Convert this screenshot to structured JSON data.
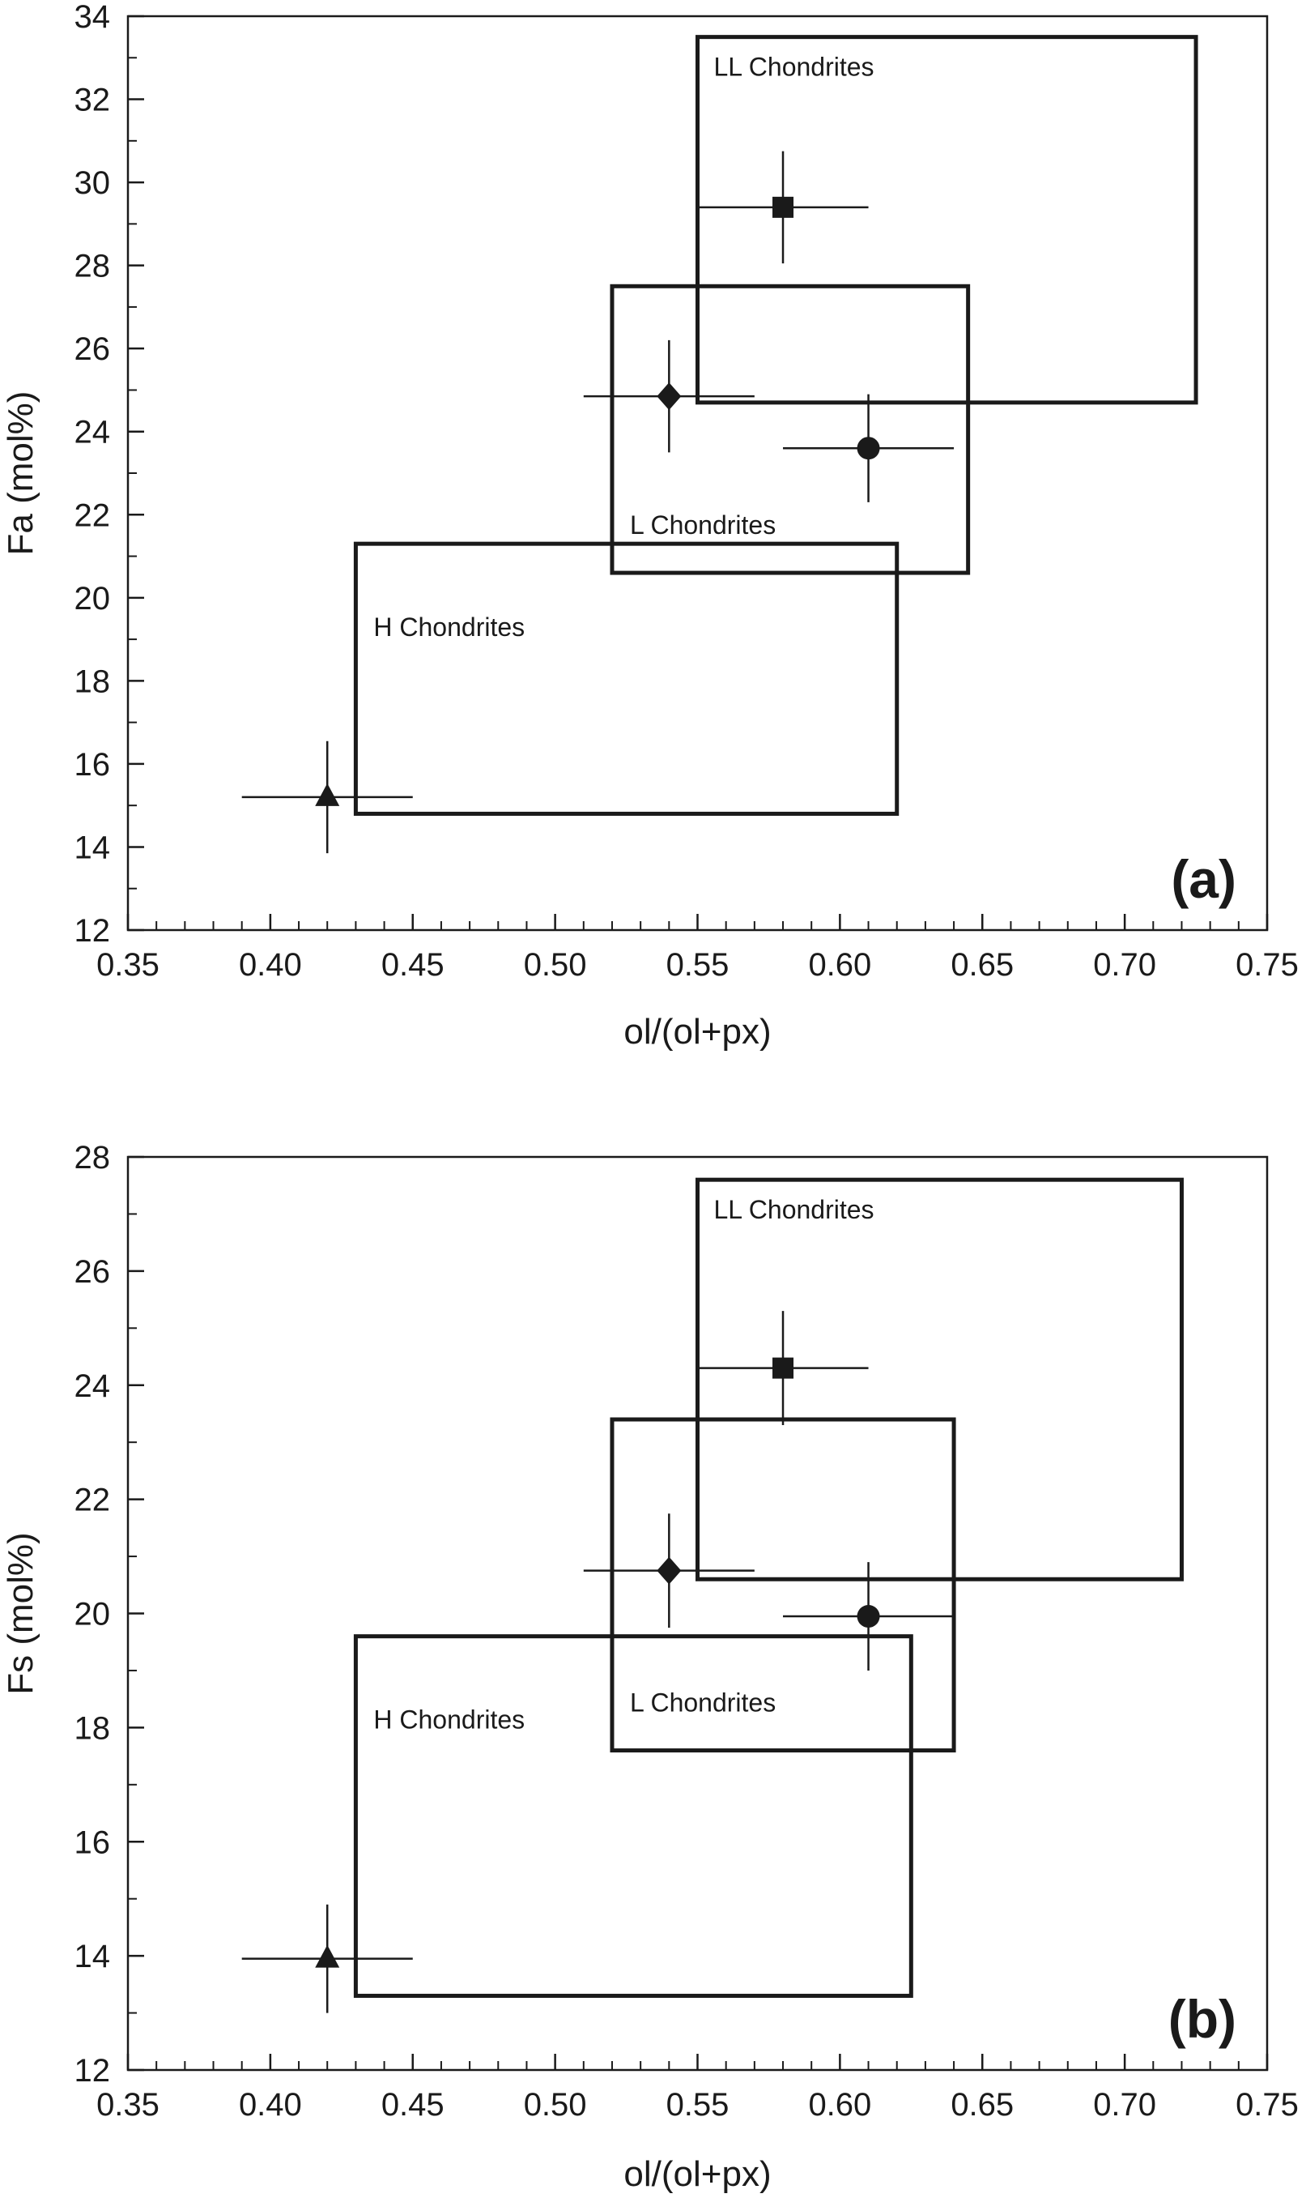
{
  "chart_data": [
    {
      "type": "scatter",
      "panel": "(a)",
      "xlabel": "ol/(ol+px)",
      "ylabel": "Fa (mol%)",
      "xlim": [
        0.35,
        0.75
      ],
      "ylim": [
        12,
        34
      ],
      "xticks": [
        "0.35",
        "0.40",
        "0.45",
        "0.50",
        "0.55",
        "0.60",
        "0.65",
        "0.70",
        "0.75"
      ],
      "yticks": [
        "12",
        "14",
        "16",
        "18",
        "20",
        "22",
        "24",
        "26",
        "28",
        "30",
        "32",
        "34"
      ],
      "regions": [
        {
          "name": "LL Chondrites",
          "x": [
            0.55,
            0.725
          ],
          "y": [
            24.7,
            33.5
          ]
        },
        {
          "name": "L Chondrites",
          "x": [
            0.52,
            0.645
          ],
          "y": [
            20.6,
            27.5
          ]
        },
        {
          "name": "H Chondrites",
          "x": [
            0.43,
            0.62
          ],
          "y": [
            14.8,
            21.3
          ]
        }
      ],
      "points": [
        {
          "marker": "square",
          "x": 0.58,
          "y": 29.4,
          "xerr": 0.03,
          "yerr": 1.35
        },
        {
          "marker": "diamond",
          "x": 0.54,
          "y": 24.85,
          "xerr": 0.03,
          "yerr": 1.35
        },
        {
          "marker": "circle",
          "x": 0.61,
          "y": 23.6,
          "xerr": 0.03,
          "yerr": 1.3
        },
        {
          "marker": "triangle",
          "x": 0.42,
          "y": 15.2,
          "xerr": 0.03,
          "yerr": 1.35
        }
      ],
      "grid": false
    },
    {
      "type": "scatter",
      "panel": "(b)",
      "xlabel": "ol/(ol+px)",
      "ylabel": "Fs (mol%)",
      "xlim": [
        0.35,
        0.75
      ],
      "ylim": [
        12,
        28
      ],
      "xticks": [
        "0.35",
        "0.40",
        "0.45",
        "0.50",
        "0.55",
        "0.60",
        "0.65",
        "0.70",
        "0.75"
      ],
      "yticks": [
        "12",
        "14",
        "16",
        "18",
        "20",
        "22",
        "24",
        "26",
        "28"
      ],
      "regions": [
        {
          "name": "LL Chondrites",
          "x": [
            0.55,
            0.72
          ],
          "y": [
            20.6,
            27.6
          ]
        },
        {
          "name": "L Chondrites",
          "x": [
            0.52,
            0.64
          ],
          "y": [
            17.6,
            23.4
          ]
        },
        {
          "name": "H Chondrites",
          "x": [
            0.43,
            0.625
          ],
          "y": [
            13.3,
            19.6
          ]
        }
      ],
      "points": [
        {
          "marker": "square",
          "x": 0.58,
          "y": 24.3,
          "xerr": 0.03,
          "yerr": 1.0
        },
        {
          "marker": "diamond",
          "x": 0.54,
          "y": 20.75,
          "xerr": 0.03,
          "yerr": 1.0
        },
        {
          "marker": "circle",
          "x": 0.61,
          "y": 19.95,
          "xerr": 0.03,
          "yerr": 0.95
        },
        {
          "marker": "triangle",
          "x": 0.42,
          "y": 13.95,
          "xerr": 0.03,
          "yerr": 0.95
        }
      ],
      "grid": false
    }
  ]
}
